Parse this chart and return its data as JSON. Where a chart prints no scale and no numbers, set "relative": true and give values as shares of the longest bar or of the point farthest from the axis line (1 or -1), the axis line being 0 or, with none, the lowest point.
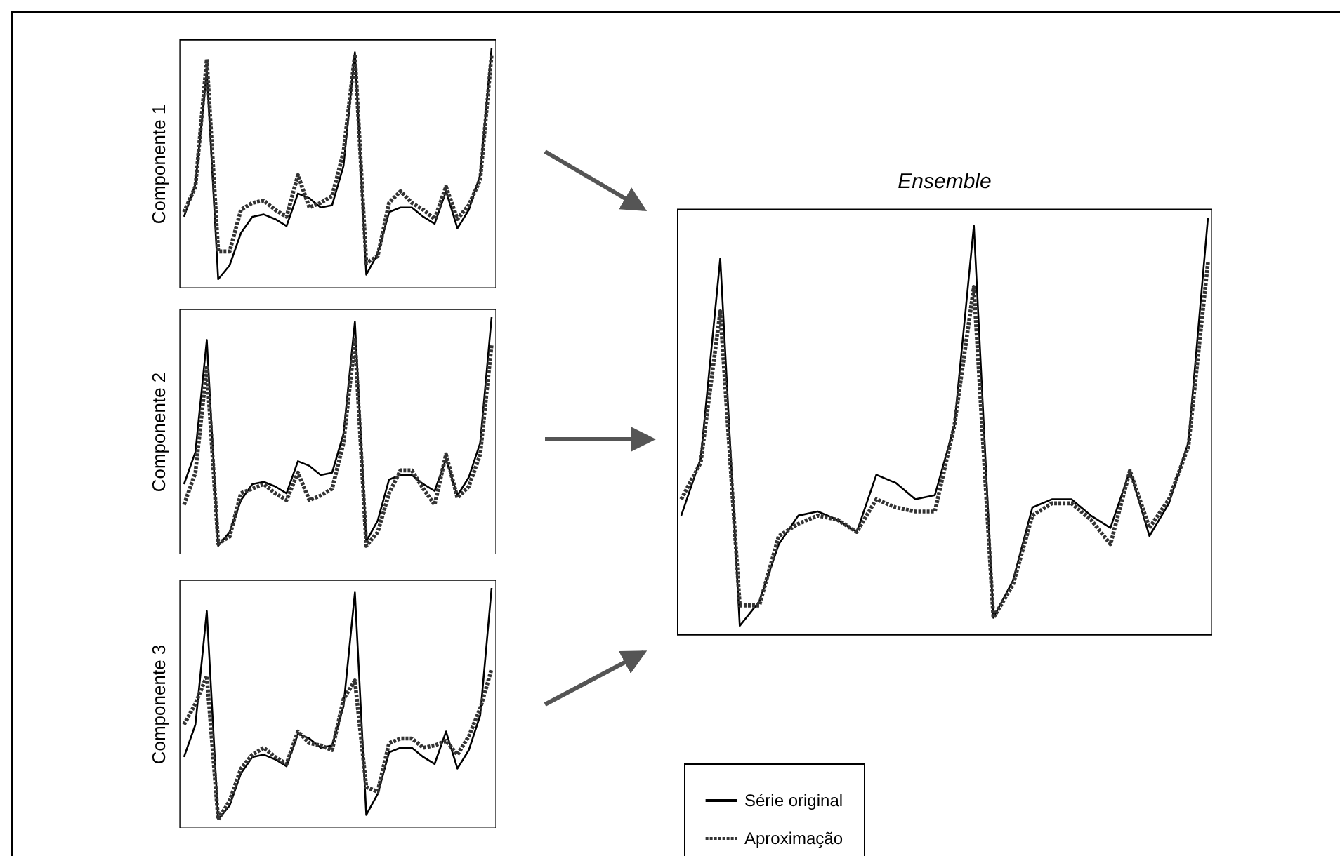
{
  "chart_data": [
    {
      "type": "line",
      "ylabel": "Componente 1",
      "relative": true,
      "legend": false,
      "categories": [
        null,
        null,
        null,
        null,
        null,
        null,
        null,
        null,
        null,
        null,
        null,
        null,
        null,
        null,
        null,
        null,
        null,
        null,
        null,
        null,
        null,
        null,
        null,
        null,
        null,
        null,
        null,
        null
      ],
      "series": [
        {
          "color": "#000000",
          "line_style": "solid",
          "values": [
            0.27,
            0.41,
            0.9,
            0,
            0.06,
            0.2,
            0.27,
            0.28,
            0.26,
            0.23,
            0.37,
            0.35,
            0.31,
            0.32,
            0.49,
            0.98,
            0.02,
            0.11,
            0.29,
            0.31,
            0.31,
            0.27,
            0.24,
            0.38,
            0.22,
            0.3,
            0.45,
            1
          ]
        },
        {
          "color": "#333333",
          "line_style": "dotted",
          "values": [
            0.29,
            0.4,
            0.95,
            0.12,
            0.12,
            0.3,
            0.33,
            0.34,
            0.3,
            0.27,
            0.45,
            0.31,
            0.33,
            0.36,
            0.55,
            0.97,
            0.07,
            0.1,
            0.33,
            0.38,
            0.33,
            0.3,
            0.26,
            0.4,
            0.26,
            0.32,
            0.43,
            0.97
          ]
        }
      ]
    },
    {
      "type": "line",
      "ylabel": "Componente 2",
      "relative": true,
      "legend": false,
      "categories": [
        null,
        null,
        null,
        null,
        null,
        null,
        null,
        null,
        null,
        null,
        null,
        null,
        null,
        null,
        null,
        null,
        null,
        null,
        null,
        null,
        null,
        null,
        null,
        null,
        null,
        null,
        null,
        null
      ],
      "series": [
        {
          "color": "#000000",
          "line_style": "solid",
          "values": [
            0.27,
            0.41,
            0.9,
            0,
            0.06,
            0.2,
            0.27,
            0.28,
            0.26,
            0.23,
            0.37,
            0.35,
            0.31,
            0.32,
            0.49,
            0.98,
            0.02,
            0.11,
            0.29,
            0.31,
            0.31,
            0.27,
            0.24,
            0.38,
            0.22,
            0.3,
            0.45,
            1
          ]
        },
        {
          "color": "#333333",
          "line_style": "dotted",
          "values": [
            0.18,
            0.32,
            0.78,
            0.01,
            0.04,
            0.23,
            0.25,
            0.27,
            0.23,
            0.2,
            0.32,
            0.2,
            0.22,
            0.25,
            0.45,
            0.9,
            0,
            0.06,
            0.23,
            0.33,
            0.33,
            0.25,
            0.18,
            0.4,
            0.21,
            0.26,
            0.4,
            0.88
          ]
        }
      ]
    },
    {
      "type": "line",
      "ylabel": "Componente 3",
      "relative": true,
      "legend": false,
      "categories": [
        null,
        null,
        null,
        null,
        null,
        null,
        null,
        null,
        null,
        null,
        null,
        null,
        null,
        null,
        null,
        null,
        null,
        null,
        null,
        null,
        null,
        null,
        null,
        null,
        null,
        null,
        null,
        null
      ],
      "series": [
        {
          "color": "#000000",
          "line_style": "solid",
          "values": [
            0.27,
            0.41,
            0.9,
            0,
            0.06,
            0.2,
            0.27,
            0.28,
            0.26,
            0.23,
            0.37,
            0.35,
            0.31,
            0.32,
            0.49,
            0.98,
            0.02,
            0.11,
            0.29,
            0.31,
            0.31,
            0.27,
            0.24,
            0.38,
            0.22,
            0.3,
            0.45,
            1
          ]
        },
        {
          "color": "#333333",
          "line_style": "dotted",
          "values": [
            0.41,
            0.5,
            0.62,
            0,
            0.08,
            0.22,
            0.28,
            0.31,
            0.27,
            0.24,
            0.38,
            0.33,
            0.32,
            0.3,
            0.52,
            0.6,
            0.14,
            0.12,
            0.33,
            0.35,
            0.35,
            0.31,
            0.32,
            0.34,
            0.28,
            0.36,
            0.48,
            0.65
          ]
        }
      ]
    },
    {
      "type": "line",
      "title": "Ensemble",
      "relative": true,
      "legend": "bottom",
      "categories": [
        null,
        null,
        null,
        null,
        null,
        null,
        null,
        null,
        null,
        null,
        null,
        null,
        null,
        null,
        null,
        null,
        null,
        null,
        null,
        null,
        null,
        null,
        null,
        null,
        null,
        null,
        null,
        null
      ],
      "series": [
        {
          "name": "Série original",
          "color": "#000000",
          "line_style": "solid",
          "values": [
            0.27,
            0.41,
            0.9,
            0,
            0.06,
            0.2,
            0.27,
            0.28,
            0.26,
            0.23,
            0.37,
            0.35,
            0.31,
            0.32,
            0.49,
            0.98,
            0.02,
            0.11,
            0.29,
            0.31,
            0.31,
            0.27,
            0.24,
            0.38,
            0.22,
            0.3,
            0.45,
            1
          ]
        },
        {
          "name": "Aproximação",
          "color": "#333333",
          "line_style": "dotted",
          "values": [
            0.31,
            0.4,
            0.77,
            0.05,
            0.05,
            0.22,
            0.25,
            0.27,
            0.26,
            0.23,
            0.31,
            0.29,
            0.28,
            0.28,
            0.49,
            0.83,
            0.02,
            0.1,
            0.27,
            0.3,
            0.3,
            0.26,
            0.2,
            0.38,
            0.24,
            0.31,
            0.44,
            0.89
          ]
        }
      ]
    }
  ]
}
